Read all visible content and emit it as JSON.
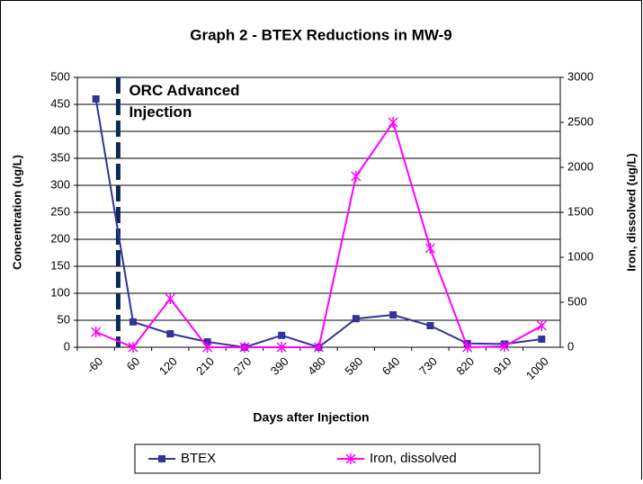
{
  "chart_data": {
    "type": "line",
    "title": "Graph 2 - BTEX Reductions in MW-9",
    "x_label": "Days after Injection",
    "y_label": "Concentration (ug/L)",
    "y2_label": "Iron, dissolved (ug/L)",
    "annotation": "ORC Advanced Injection",
    "categories": [
      "-60",
      "60",
      "120",
      "210",
      "270",
      "390",
      "480",
      "580",
      "640",
      "730",
      "820",
      "910",
      "1000"
    ],
    "series": [
      {
        "name": "BTEX",
        "color": "#333399",
        "marker": "square",
        "values": [
          460,
          47,
          25,
          10,
          0,
          22,
          0,
          53,
          60,
          40,
          7,
          6,
          15
        ]
      },
      {
        "name": "Iron, dissolved",
        "color": "#ff00ff",
        "marker": "star",
        "axis": "y2",
        "values": [
          170,
          0,
          540,
          0,
          0,
          0,
          0,
          1900,
          2500,
          1100,
          0,
          10,
          240
        ]
      }
    ],
    "ylim": [
      0,
      500
    ],
    "yticks": [
      0,
      50,
      100,
      150,
      200,
      250,
      300,
      350,
      400,
      450,
      500
    ],
    "y2lim": [
      0,
      3000
    ],
    "y2ticks": [
      0,
      500,
      1000,
      1500,
      2000,
      2500,
      3000
    ],
    "grid": true,
    "legend": "bottom"
  }
}
